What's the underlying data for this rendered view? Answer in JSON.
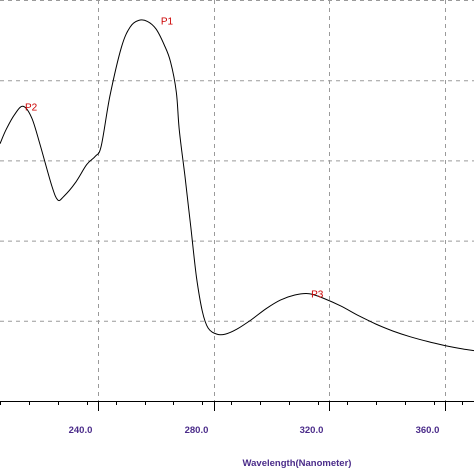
{
  "chart_data": {
    "type": "line",
    "xlabel": "Wavelength(Nanometer)",
    "ylabel": "",
    "xlim": [
      206,
      370
    ],
    "ylim": [
      0,
      1
    ],
    "grid": true,
    "x_ticks": [
      240,
      280,
      320,
      360
    ],
    "x_tick_labels": [
      "240.0",
      "280.0",
      "320.0",
      "360.0"
    ],
    "series": [
      {
        "x": [
          206,
          208,
          211,
          214,
          217,
          220,
          224,
          226,
          228,
          232,
          236,
          239,
          241,
          244,
          248,
          251,
          254,
          257,
          260,
          263,
          265,
          267,
          268,
          270,
          272,
          274,
          276,
          278,
          281,
          284,
          288,
          293,
          298,
          303,
          308,
          313,
          318,
          324,
          330,
          336,
          342,
          348,
          354,
          360,
          366,
          370
        ],
        "y": [
          0.627,
          0.667,
          0.713,
          0.738,
          0.703,
          0.62,
          0.5,
          0.46,
          0.47,
          0.51,
          0.565,
          0.59,
          0.62,
          0.767,
          0.913,
          0.973,
          0.993,
          0.99,
          0.967,
          0.917,
          0.87,
          0.78,
          0.67,
          0.53,
          0.38,
          0.23,
          0.13,
          0.08,
          0.062,
          0.062,
          0.077,
          0.105,
          0.137,
          0.163,
          0.178,
          0.182,
          0.168,
          0.145,
          0.117,
          0.092,
          0.071,
          0.054,
          0.04,
          0.028,
          0.018,
          0.013
        ]
      }
    ],
    "annotations": [
      {
        "text": "P1",
        "x": 261,
        "y": 0.993
      },
      {
        "text": "P2",
        "x": 214,
        "y": 0.738
      },
      {
        "text": "P3",
        "x": 313,
        "y": 0.182
      }
    ]
  }
}
